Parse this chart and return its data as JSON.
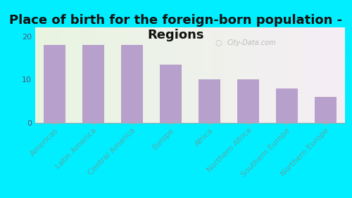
{
  "title": "Place of birth for the foreign-born population -\nRegions",
  "categories": [
    "Americas",
    "Latin America",
    "Central America",
    "Europe",
    "Africa",
    "Northern Africa",
    "Southern Europe",
    "Northern Europe"
  ],
  "values": [
    18,
    18,
    18,
    13.5,
    10,
    10,
    8,
    6
  ],
  "bar_color": "#b8a0cc",
  "background_color": "#00eeff",
  "ylim": [
    0,
    22
  ],
  "yticks": [
    0,
    10,
    20
  ],
  "watermark": "City-Data.com",
  "title_fontsize": 13,
  "tick_fontsize": 8,
  "label_color": "#55aaaa",
  "ytick_color": "#555577"
}
